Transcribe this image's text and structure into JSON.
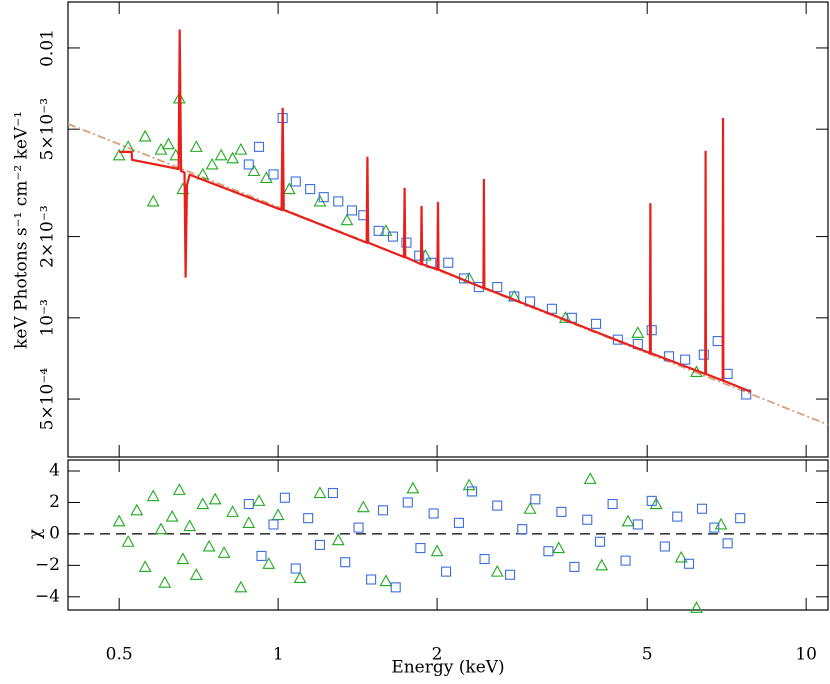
{
  "chart_data": [
    {
      "type": "scatter",
      "xlog": true,
      "ylog": true,
      "y_label": "keV Photons s⁻¹ cm⁻² keV⁻¹",
      "xlim": [
        0.4,
        11
      ],
      "ylim": [
        0.000305,
        0.0148
      ],
      "xticks": [
        0.5,
        1,
        2,
        5,
        10
      ],
      "yticks": [
        0.01,
        {
          "value": 0.005,
          "label": "5×10⁻³"
        },
        {
          "value": 0.002,
          "label": "2×10⁻³"
        },
        {
          "value": 0.001,
          "label": "10⁻³"
        },
        {
          "value": 0.0005,
          "label": "5×10⁻⁴"
        }
      ],
      "series": [
        {
          "color": "#d8a07c",
          "style": "dashdot",
          "x": [
            0.4,
            11
          ],
          "values": [
            0.00523,
            0.000402
          ]
        },
        {
          "color": "#1faa1f",
          "marker": "triangle",
          "x": [
            0.5,
            0.52,
            0.56,
            0.58,
            0.6,
            0.62,
            0.64,
            0.65,
            0.66,
            0.7,
            0.72,
            0.75,
            0.78,
            0.82,
            0.85,
            0.9,
            0.95,
            1.05,
            1.2,
            1.35,
            1.6,
            1.9,
            2.3,
            2.8,
            3.5,
            4.8,
            6.2
          ],
          "values": [
            0.004,
            0.0043,
            0.0047,
            0.0027,
            0.0042,
            0.0044,
            0.004,
            0.0065,
            0.003,
            0.0043,
            0.0034,
            0.0037,
            0.004,
            0.0039,
            0.0042,
            0.0035,
            0.0033,
            0.003,
            0.0027,
            0.0023,
            0.0021,
            0.0017,
            0.0014,
            0.0012,
            0.001,
            0.00088,
            0.00063
          ]
        },
        {
          "color": "#3b6ee0",
          "marker": "square",
          "x": [
            0.88,
            0.92,
            0.98,
            1.02,
            1.08,
            1.15,
            1.22,
            1.3,
            1.38,
            1.45,
            1.55,
            1.65,
            1.75,
            1.85,
            1.95,
            2.1,
            2.25,
            2.4,
            2.6,
            2.8,
            3.0,
            3.3,
            3.6,
            4.0,
            4.4,
            4.8,
            5.1,
            5.5,
            5.9,
            6.4,
            6.8,
            7.1,
            7.7
          ],
          "values": [
            0.0037,
            0.0043,
            0.0034,
            0.0055,
            0.0032,
            0.003,
            0.0028,
            0.0027,
            0.0025,
            0.0024,
            0.0021,
            0.002,
            0.0019,
            0.0017,
            0.0016,
            0.0016,
            0.0014,
            0.0013,
            0.0013,
            0.0012,
            0.00115,
            0.00108,
            0.001,
            0.00095,
            0.00083,
            0.0008,
            0.0009,
            0.00072,
            0.0007,
            0.00073,
            0.00082,
            0.00062,
            0.00052
          ]
        },
        {
          "color": "#e8201c",
          "style": "solid",
          "x": [
            0.5,
            0.528,
            0.529,
            0.648,
            0.651,
            0.655,
            0.665,
            0.668,
            0.672,
            0.68,
            1.015,
            1.02,
            1.025,
            1.471,
            1.476,
            1.481,
            1.731,
            1.736,
            1.741,
            1.864,
            1.869,
            1.874,
            2.003,
            2.008,
            2.013,
            2.448,
            2.453,
            2.458,
            5.06,
            5.07,
            5.08,
            6.44,
            6.45,
            6.46,
            6.95,
            6.96,
            6.97,
            7.86
          ],
          "values": [
            0.00412,
            0.00412,
            0.00385,
            0.00356,
            0.0117,
            0.0035,
            0.00345,
            0.00141,
            0.00311,
            0.00339,
            0.00251,
            0.006,
            0.00251,
            0.0019,
            0.00395,
            0.0019,
            0.00168,
            0.00303,
            0.00168,
            0.00158,
            0.0026,
            0.00158,
            0.00151,
            0.00269,
            0.00151,
            0.00129,
            0.00327,
            0.00129,
            0.00074,
            0.00266,
            0.00074,
            0.00062,
            0.00416,
            0.00062,
            0.000585,
            0.0055,
            0.000585,
            0.000532
          ]
        }
      ]
    },
    {
      "type": "scatter",
      "xlog": true,
      "y_label": "χ",
      "x_label": "Energy (keV)",
      "xlim": [
        0.4,
        11
      ],
      "ylim": [
        -4.84,
        4.7
      ],
      "xticks": [
        0.5,
        1,
        2,
        5,
        10
      ],
      "yticks": [
        4,
        2,
        0,
        {
          "value": -2,
          "label": "−2"
        },
        {
          "value": -4,
          "label": "−4"
        }
      ],
      "zero_line": true,
      "series": [
        {
          "color": "#1faa1f",
          "marker": "triangle",
          "x": [
            0.5,
            0.52,
            0.54,
            0.56,
            0.58,
            0.6,
            0.61,
            0.63,
            0.65,
            0.66,
            0.68,
            0.7,
            0.72,
            0.74,
            0.76,
            0.79,
            0.82,
            0.85,
            0.88,
            0.92,
            0.96,
            1.0,
            1.1,
            1.2,
            1.3,
            1.45,
            1.6,
            1.8,
            2.0,
            2.3,
            2.6,
            3.0,
            3.4,
            3.9,
            4.1,
            4.6,
            5.2,
            5.8,
            6.2,
            6.9
          ],
          "values": [
            0.8,
            -0.5,
            1.5,
            -2.1,
            2.4,
            0.3,
            -3.1,
            1.1,
            2.8,
            -1.6,
            0.5,
            -2.6,
            1.9,
            -0.8,
            2.2,
            -1.2,
            1.4,
            -3.4,
            0.7,
            2.1,
            -1.9,
            1.2,
            -2.8,
            2.6,
            -0.4,
            1.7,
            -3.0,
            2.9,
            -1.1,
            3.1,
            -2.4,
            1.6,
            -0.9,
            3.5,
            -2.0,
            0.8,
            1.9,
            -1.5,
            -4.7,
            0.6
          ]
        },
        {
          "color": "#3b6ee0",
          "marker": "square",
          "x": [
            0.88,
            0.93,
            0.98,
            1.03,
            1.08,
            1.14,
            1.2,
            1.27,
            1.34,
            1.42,
            1.5,
            1.58,
            1.67,
            1.76,
            1.86,
            1.97,
            2.08,
            2.2,
            2.33,
            2.46,
            2.6,
            2.75,
            2.9,
            3.07,
            3.25,
            3.44,
            3.64,
            3.85,
            4.07,
            4.3,
            4.55,
            4.8,
            5.1,
            5.4,
            5.7,
            6.0,
            6.35,
            6.7,
            7.1,
            7.5
          ],
          "values": [
            1.9,
            -1.4,
            0.6,
            2.3,
            -2.2,
            1.0,
            -0.7,
            2.6,
            -1.8,
            0.4,
            -2.9,
            1.5,
            -3.4,
            2.0,
            -0.9,
            1.3,
            -2.4,
            0.7,
            2.7,
            -1.6,
            1.8,
            -2.6,
            0.3,
            2.2,
            -1.1,
            1.4,
            -2.1,
            0.9,
            -0.5,
            1.9,
            -1.7,
            0.6,
            2.1,
            -0.8,
            1.1,
            -1.9,
            1.6,
            0.4,
            -0.6,
            1.0
          ]
        }
      ]
    }
  ]
}
